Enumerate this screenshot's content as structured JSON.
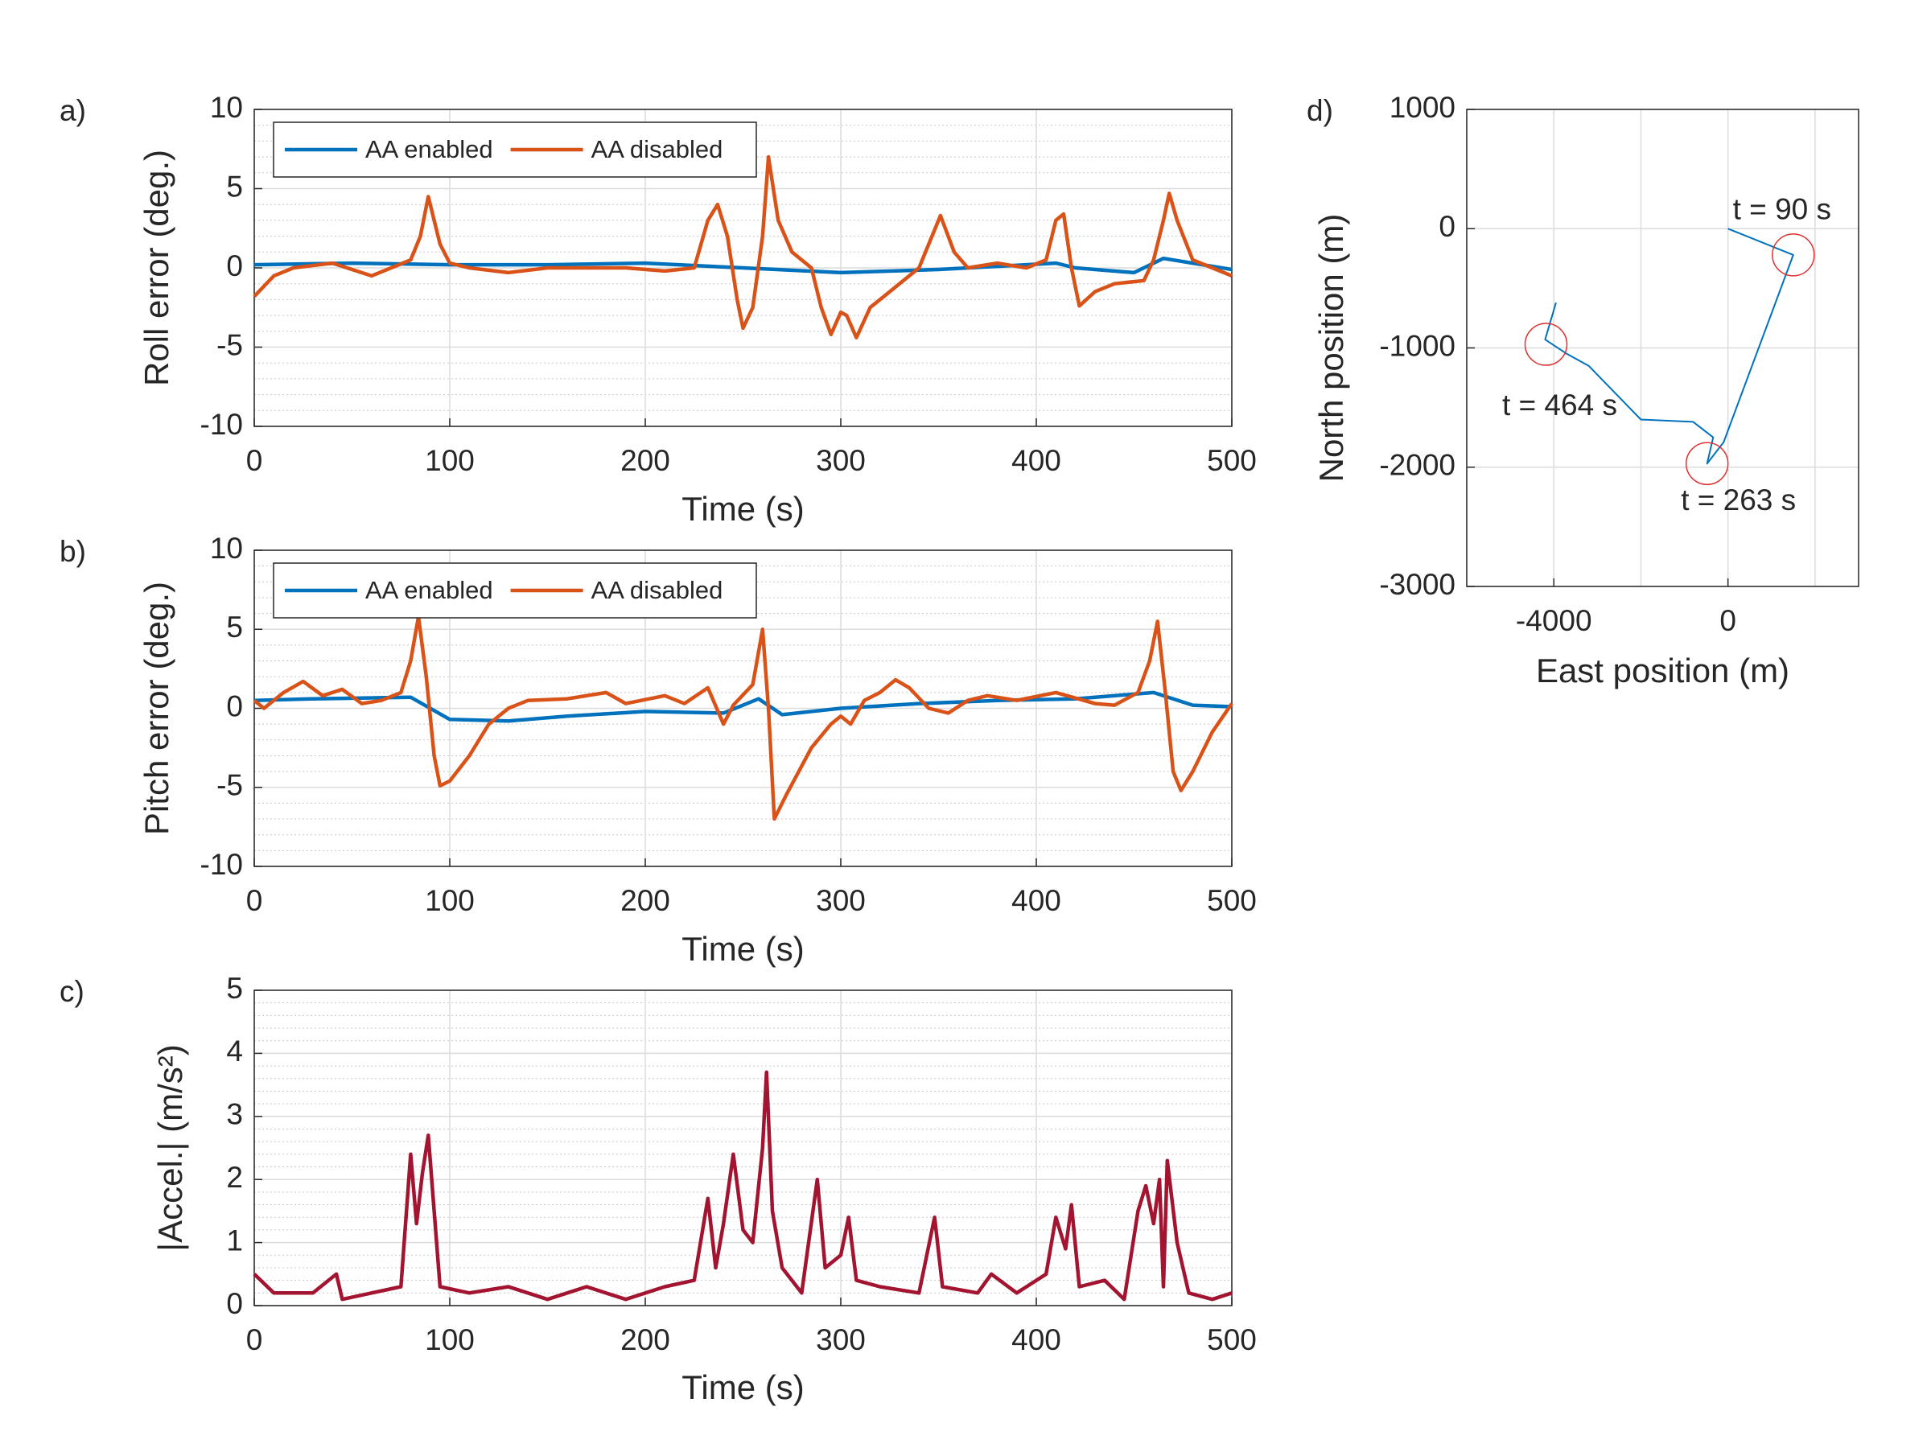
{
  "chart_data": [
    {
      "type": "line",
      "panel_label": "a)",
      "xlabel": "Time (s)",
      "ylabel": "Roll error (deg.)",
      "xlim": [
        0,
        500
      ],
      "xticks": [
        0,
        100,
        200,
        300,
        400,
        500
      ],
      "ylim": [
        -10,
        10
      ],
      "yticks": [
        -10,
        -5,
        0,
        5,
        10
      ],
      "grid": true,
      "minor_ystep": 1,
      "legend": "top-left",
      "series": [
        {
          "name": "AA enabled",
          "color": "#0072bd",
          "x": [
            0,
            50,
            100,
            150,
            200,
            250,
            300,
            350,
            410,
            420,
            450,
            465,
            480,
            500
          ],
          "values": [
            0.2,
            0.3,
            0.2,
            0.2,
            0.3,
            0,
            -0.3,
            -0.1,
            0.3,
            0,
            -0.3,
            0.6,
            0.3,
            -0.1
          ]
        },
        {
          "name": "AA disabled",
          "color": "#d95319",
          "x": [
            0,
            10,
            20,
            40,
            60,
            70,
            80,
            85,
            89,
            95,
            100,
            110,
            130,
            150,
            170,
            190,
            210,
            225,
            232,
            237,
            242,
            247,
            250,
            255,
            260,
            263,
            268,
            275,
            285,
            290,
            295,
            300,
            303,
            308,
            315,
            325,
            340,
            345,
            351,
            358,
            365,
            380,
            395,
            405,
            410,
            414,
            418,
            422,
            430,
            440,
            455,
            460,
            465,
            468,
            472,
            480,
            490,
            500
          ],
          "values": [
            -1.8,
            -0.5,
            0,
            0.3,
            -0.5,
            0,
            0.5,
            2,
            4.5,
            1.5,
            0.3,
            0,
            -0.3,
            0,
            0,
            0,
            -0.2,
            0,
            3,
            4,
            2,
            -2,
            -3.8,
            -2.5,
            2,
            7,
            3,
            1,
            0,
            -2.5,
            -4.2,
            -2.8,
            -3,
            -4.4,
            -2.5,
            -1.5,
            0,
            1.5,
            3.3,
            1,
            0,
            0.3,
            0,
            0.5,
            3,
            3.4,
            0,
            -2.4,
            -1.5,
            -1,
            -0.8,
            0.5,
            3,
            4.7,
            3,
            0.5,
            0,
            -0.5
          ]
        }
      ]
    },
    {
      "type": "line",
      "panel_label": "b)",
      "xlabel": "Time (s)",
      "ylabel": "Pitch error (deg.)",
      "xlim": [
        0,
        500
      ],
      "xticks": [
        0,
        100,
        200,
        300,
        400,
        500
      ],
      "ylim": [
        -10,
        10
      ],
      "yticks": [
        -10,
        -5,
        0,
        5,
        10
      ],
      "grid": true,
      "minor_ystep": 1,
      "legend": "top-left",
      "series": [
        {
          "name": "AA enabled",
          "color": "#0072bd",
          "x": [
            0,
            30,
            80,
            100,
            130,
            160,
            200,
            240,
            258,
            270,
            300,
            340,
            380,
            420,
            460,
            480,
            500
          ],
          "values": [
            0.5,
            0.6,
            0.7,
            -0.7,
            -0.8,
            -0.5,
            -0.2,
            -0.3,
            0.6,
            -0.4,
            0,
            0.3,
            0.5,
            0.6,
            1,
            0.2,
            0.1
          ]
        },
        {
          "name": "AA disabled",
          "color": "#d95319",
          "x": [
            0,
            5,
            15,
            25,
            35,
            45,
            55,
            65,
            75,
            80,
            84,
            88,
            92,
            95,
            100,
            110,
            120,
            130,
            140,
            160,
            180,
            190,
            210,
            220,
            232,
            240,
            245,
            255,
            260,
            263,
            266,
            272,
            285,
            295,
            300,
            305,
            312,
            320,
            328,
            335,
            345,
            355,
            365,
            375,
            390,
            410,
            430,
            440,
            452,
            458,
            462,
            466,
            470,
            474,
            480,
            490,
            500
          ],
          "values": [
            0.5,
            0,
            1,
            1.7,
            0.8,
            1.2,
            0.3,
            0.5,
            1,
            3,
            5.8,
            2,
            -3,
            -4.9,
            -4.6,
            -3,
            -1,
            0,
            0.5,
            0.6,
            1,
            0.3,
            0.8,
            0.3,
            1.3,
            -1,
            0.2,
            1.5,
            5,
            0,
            -7,
            -5.5,
            -2.5,
            -1,
            -0.5,
            -1,
            0.5,
            1,
            1.8,
            1.3,
            0,
            -0.3,
            0.5,
            0.8,
            0.5,
            1,
            0.3,
            0.2,
            1,
            3,
            5.5,
            1,
            -4,
            -5.2,
            -4,
            -1.5,
            0.3
          ]
        }
      ]
    },
    {
      "type": "line",
      "panel_label": "c)",
      "xlabel": "Time (s)",
      "ylabel": "|Accel.| (m/s²)",
      "xlim": [
        0,
        500
      ],
      "xticks": [
        0,
        100,
        200,
        300,
        400,
        500
      ],
      "ylim": [
        0,
        5
      ],
      "yticks": [
        0,
        1,
        2,
        3,
        4,
        5
      ],
      "grid": true,
      "minor_ystep": 0.2,
      "series": [
        {
          "color": "#a2142f",
          "x": [
            0,
            10,
            30,
            42,
            45,
            60,
            75,
            80,
            83,
            86,
            89,
            92,
            95,
            110,
            130,
            150,
            170,
            190,
            210,
            225,
            232,
            236,
            240,
            245,
            250,
            255,
            260,
            262,
            265,
            270,
            280,
            288,
            292,
            300,
            304,
            308,
            320,
            340,
            348,
            352,
            370,
            377,
            390,
            405,
            410,
            415,
            418,
            422,
            435,
            445,
            452,
            456,
            460,
            463,
            465,
            467,
            472,
            478,
            490,
            500
          ],
          "values": [
            0.5,
            0.2,
            0.2,
            0.5,
            0.1,
            0.2,
            0.3,
            2.4,
            1.3,
            2.1,
            2.7,
            1.5,
            0.3,
            0.2,
            0.3,
            0.1,
            0.3,
            0.1,
            0.3,
            0.4,
            1.7,
            0.6,
            1.3,
            2.4,
            1.2,
            1,
            2.5,
            3.7,
            1.5,
            0.6,
            0.2,
            2,
            0.6,
            0.8,
            1.4,
            0.4,
            0.3,
            0.2,
            1.4,
            0.3,
            0.2,
            0.5,
            0.2,
            0.5,
            1.4,
            0.9,
            1.6,
            0.3,
            0.4,
            0.1,
            1.5,
            1.9,
            1.3,
            2,
            0.3,
            2.3,
            1,
            0.2,
            0.1,
            0.2
          ]
        }
      ]
    },
    {
      "type": "line",
      "panel_label": "d)",
      "xlabel": "East position (m)",
      "ylabel": "North position (m)",
      "xlim": [
        -6000,
        3000
      ],
      "xticks": [
        -4000,
        0
      ],
      "xgrid": [
        -6000,
        -4000,
        -2000,
        0,
        2000
      ],
      "ylim": [
        -3000,
        1000
      ],
      "yticks": [
        -3000,
        -2000,
        -1000,
        0,
        1000
      ],
      "grid": true,
      "series": [
        {
          "color": "#0072bd",
          "x": [
            0,
            1500,
            -100,
            -480,
            -340,
            -800,
            -2000,
            -3200,
            -3700,
            -4200,
            -3950
          ],
          "values": [
            0,
            -220,
            -1790,
            -1970,
            -1750,
            -1620,
            -1600,
            -1150,
            -1050,
            -930,
            -620
          ]
        }
      ],
      "markers": [
        {
          "label": "t = 90 s",
          "x": 1500,
          "y": -220,
          "color": "#e03030"
        },
        {
          "label": "t = 263 s",
          "x": -480,
          "y": -1970,
          "color": "#e03030"
        },
        {
          "label": "t = 464 s",
          "x": -4180,
          "y": -970,
          "color": "#e03030"
        }
      ]
    }
  ]
}
